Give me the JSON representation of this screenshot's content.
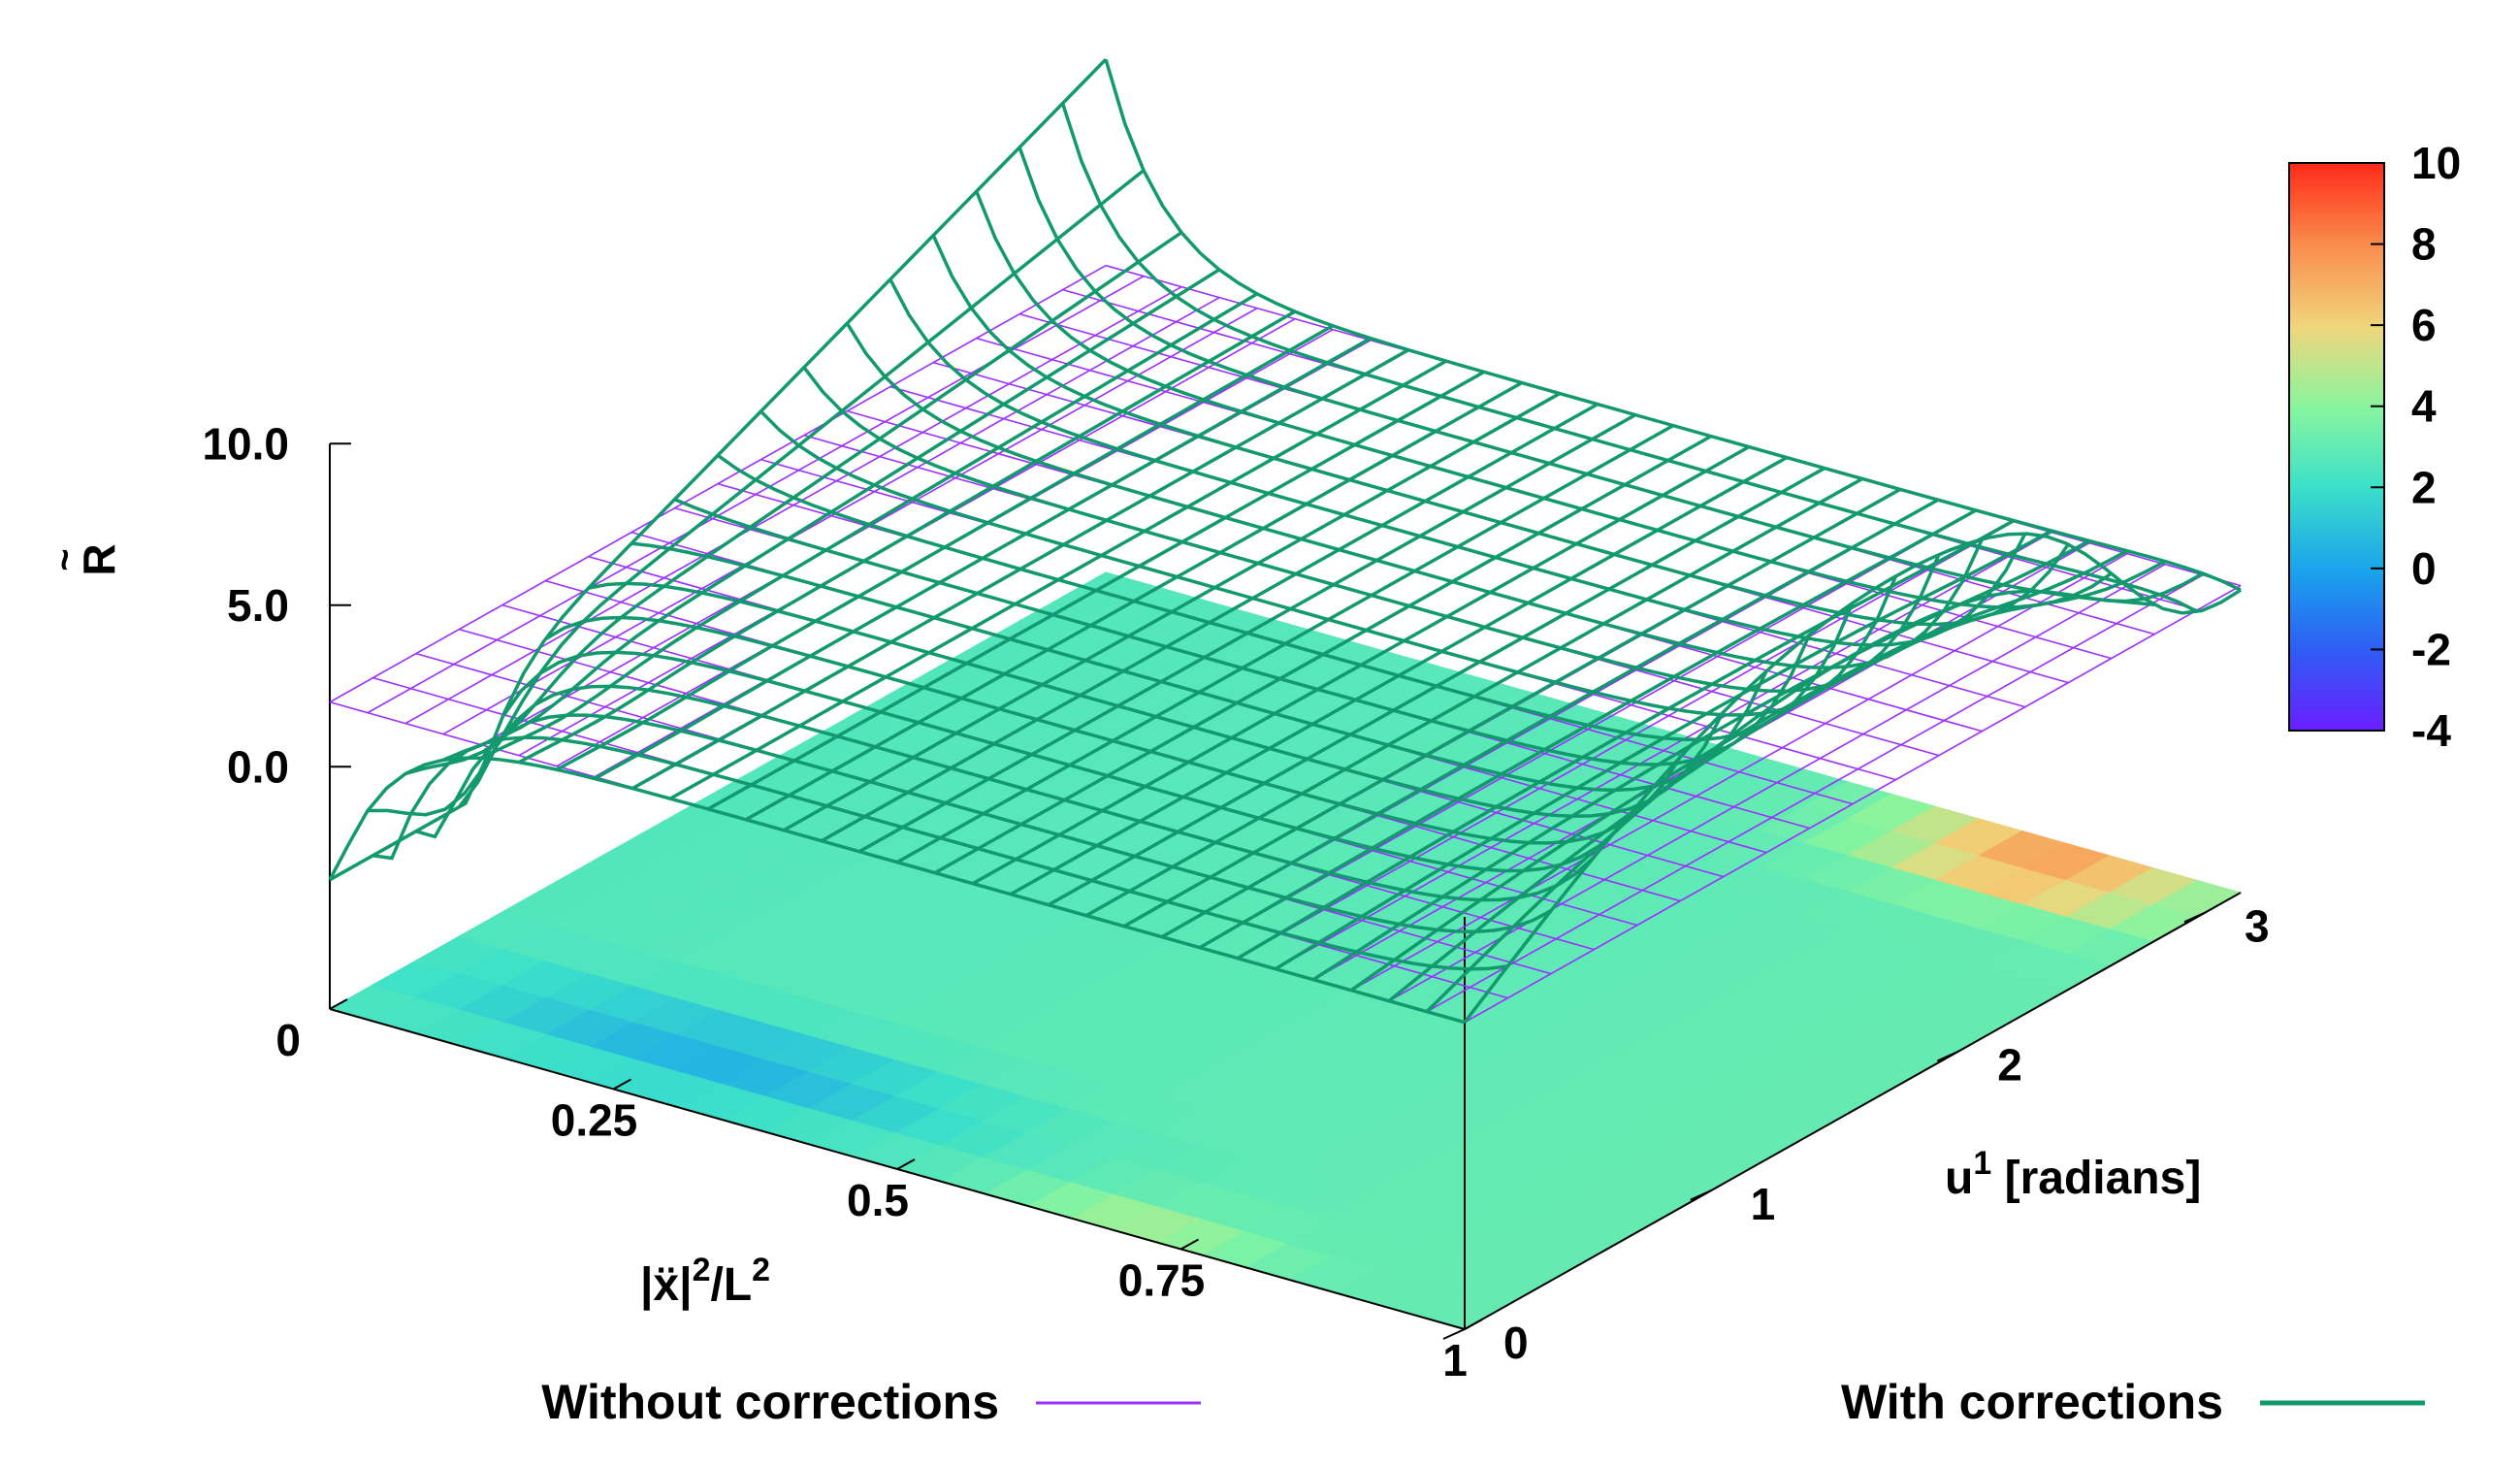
{
  "chart_data": {
    "type": "surface3d",
    "zlabel": "R",
    "zlabel_accent": "~",
    "xlabel": {
      "base": "|ẍ|",
      "sup1": "2",
      "mid": "/L",
      "sup2": "2"
    },
    "ylabel": {
      "base": "u",
      "sup": "1",
      "rest": " [radians]"
    },
    "x_ticks": [
      "0",
      "0.25",
      "0.5",
      "0.75",
      "1"
    ],
    "y_ticks": [
      "0",
      "1",
      "2",
      "3"
    ],
    "z_ticks": [
      "10.0",
      "5.0",
      "0.0"
    ],
    "cb_ticks": [
      "10",
      "8",
      "6",
      "4",
      "2",
      "0",
      "-2",
      "-4"
    ],
    "xrange": [
      0,
      1
    ],
    "yrange": [
      0,
      3.14159
    ],
    "zrange": [
      0,
      10
    ],
    "cbrange": [
      -4,
      10
    ],
    "colors": {
      "without": "#9b30ff",
      "with": "#12996e"
    },
    "series": [
      {
        "name": "Without corrections",
        "description": "flat plane at R = 2"
      },
      {
        "name": "With corrections",
        "description": "corrected surface, deviating near x = 0 and x = 1"
      }
    ]
  }
}
